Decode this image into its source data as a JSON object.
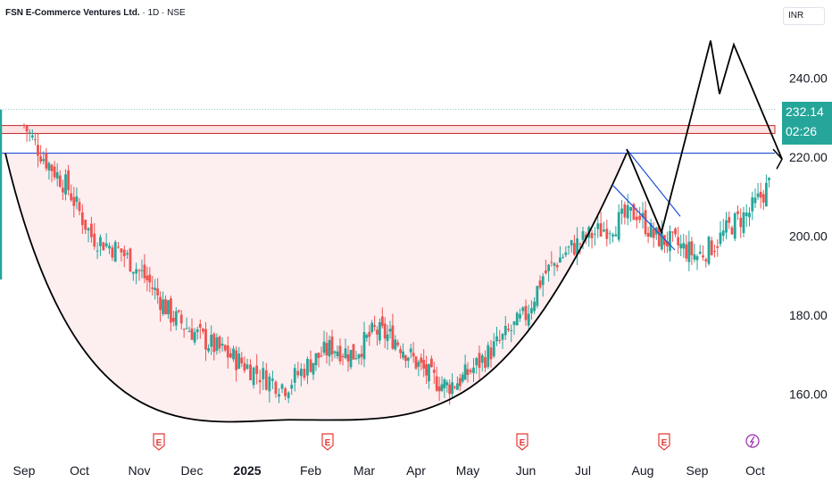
{
  "header": {
    "symbol": "FSN E-Commerce Ventures Ltd.",
    "interval_exchange": " · 1D · NSE"
  },
  "currency": "INR",
  "price_badge": {
    "price": "232.14",
    "countdown": "02:26",
    "color": "#26a69a"
  },
  "colors": {
    "up": "#26a69a",
    "down": "#ef5350",
    "cup_fill": "#fdeef0",
    "resistance": "#1e4fd8",
    "red_band": "#c62828"
  },
  "chart_data": {
    "type": "candlestick",
    "y_axis": {
      "ticks": [
        "240.00",
        "220.00",
        "200.00",
        "180.00",
        "160.00"
      ],
      "ylim": [
        148,
        252
      ]
    },
    "x_axis": {
      "ticks": [
        "Sep",
        "Oct",
        "Nov",
        "Dec",
        "2025",
        "Feb",
        "Mar",
        "Apr",
        "May",
        "Jun",
        "Jul",
        "Aug",
        "Sep",
        "Oct"
      ]
    },
    "levels": {
      "resistance": 221,
      "band_top": 228,
      "band_bottom": 226,
      "last_price_line": 232.14
    },
    "approx_closes": [
      {
        "m": 0,
        "v": 228
      },
      {
        "m": 0.35,
        "v": 220
      },
      {
        "m": 0.8,
        "v": 212
      },
      {
        "m": 1.2,
        "v": 200
      },
      {
        "m": 1.7,
        "v": 196
      },
      {
        "m": 2.2,
        "v": 188
      },
      {
        "m": 2.6,
        "v": 180
      },
      {
        "m": 3.0,
        "v": 176
      },
      {
        "m": 3.4,
        "v": 172
      },
      {
        "m": 3.9,
        "v": 168
      },
      {
        "m": 4.3,
        "v": 164
      },
      {
        "m": 4.6,
        "v": 162
      },
      {
        "m": 5.0,
        "v": 168
      },
      {
        "m": 5.4,
        "v": 172
      },
      {
        "m": 5.8,
        "v": 170
      },
      {
        "m": 6.2,
        "v": 176
      },
      {
        "m": 6.6,
        "v": 174
      },
      {
        "m": 7.0,
        "v": 168
      },
      {
        "m": 7.3,
        "v": 164
      },
      {
        "m": 7.6,
        "v": 162
      },
      {
        "m": 7.9,
        "v": 164
      },
      {
        "m": 8.2,
        "v": 168
      },
      {
        "m": 8.6,
        "v": 174
      },
      {
        "m": 9.0,
        "v": 180
      },
      {
        "m": 9.3,
        "v": 190
      },
      {
        "m": 9.7,
        "v": 196
      },
      {
        "m": 10.1,
        "v": 200
      },
      {
        "m": 10.5,
        "v": 203
      },
      {
        "m": 10.9,
        "v": 206
      },
      {
        "m": 11.2,
        "v": 200
      },
      {
        "m": 11.6,
        "v": 198
      },
      {
        "m": 12.0,
        "v": 195
      },
      {
        "m": 12.3,
        "v": 198
      },
      {
        "m": 12.6,
        "v": 203
      },
      {
        "m": 12.9,
        "v": 206
      },
      {
        "m": 13.2,
        "v": 212
      },
      {
        "m": 13.5,
        "v": 218
      },
      {
        "m": 13.8,
        "v": 222
      },
      {
        "m": 14.0,
        "v": 214
      },
      {
        "m": 14.3,
        "v": 210
      },
      {
        "m": 14.6,
        "v": 206
      },
      {
        "m": 14.9,
        "v": 201
      },
      {
        "m": 15.2,
        "v": 210
      },
      {
        "m": 15.5,
        "v": 222
      },
      {
        "m": 15.8,
        "v": 230
      },
      {
        "m": 16.1,
        "v": 238
      },
      {
        "m": 16.4,
        "v": 246
      },
      {
        "m": 16.6,
        "v": 240
      },
      {
        "m": 16.8,
        "v": 236
      },
      {
        "m": 17.0,
        "v": 244
      },
      {
        "m": 17.2,
        "v": 243
      },
      {
        "m": 17.45,
        "v": 236
      },
      {
        "m": 17.7,
        "v": 232
      }
    ]
  },
  "event_markers": [
    "E",
    "E",
    "E",
    "E"
  ]
}
